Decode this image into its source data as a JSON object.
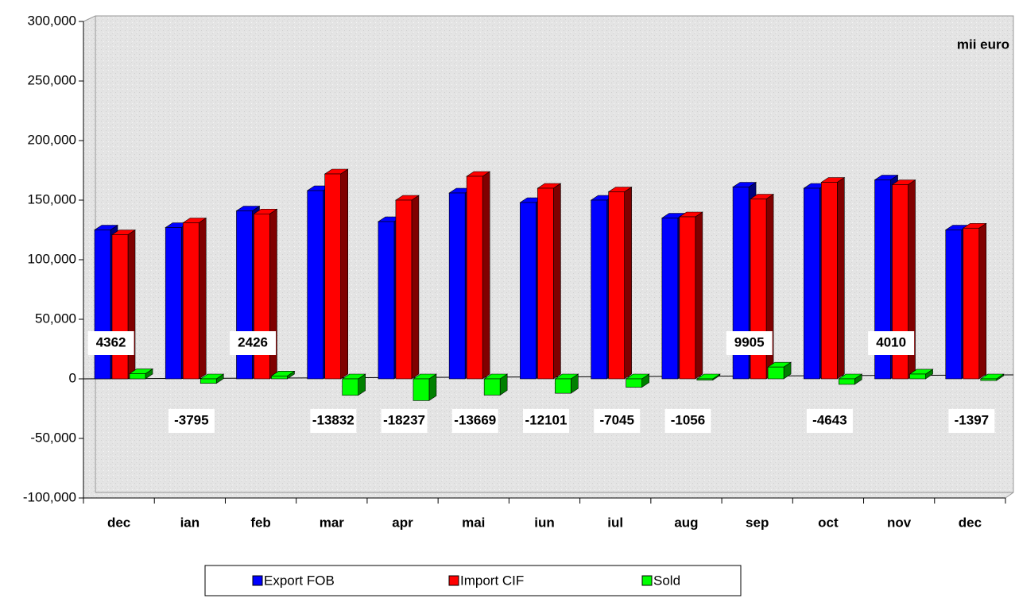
{
  "chart_data": {
    "type": "bar3d",
    "annotation": "mii euro",
    "categories": [
      "dec",
      "ian",
      "feb",
      "mar",
      "apr",
      "mai",
      "iun",
      "iul",
      "aug",
      "sep",
      "oct",
      "nov",
      "dec"
    ],
    "series": [
      {
        "name": "Export FOB",
        "color": "#0000ff",
        "side": "#00007a",
        "values": [
          125000,
          127000,
          141000,
          158000,
          132000,
          156000,
          148000,
          150000,
          135000,
          161000,
          160000,
          167000,
          125000
        ]
      },
      {
        "name": "Import CIF",
        "color": "#ff0000",
        "side": "#800000",
        "values": [
          121000,
          131000,
          138500,
          172000,
          150000,
          170000,
          160000,
          157000,
          136000,
          151000,
          165000,
          163000,
          126500
        ]
      },
      {
        "name": "Sold",
        "color": "#00ff00",
        "side": "#008000",
        "values": [
          4362,
          -3795,
          2426,
          -13832,
          -18237,
          -13669,
          -12101,
          -7045,
          -1056,
          9905,
          -4643,
          4010,
          -1397
        ],
        "labels": true
      }
    ],
    "ylim": [
      -100000,
      300000
    ],
    "yticks": [
      {
        "value": -100000,
        "label": "-100,000"
      },
      {
        "value": -50000,
        "label": "-50,000"
      },
      0,
      {
        "value": 50000,
        "label": "50,000"
      },
      {
        "value": 100000,
        "label": "100,000"
      },
      {
        "value": 150000,
        "label": "150,000"
      },
      {
        "value": 200000,
        "label": "200,000"
      },
      {
        "value": 250000,
        "label": "250,000"
      },
      {
        "value": 300000,
        "label": "300,000"
      }
    ]
  }
}
